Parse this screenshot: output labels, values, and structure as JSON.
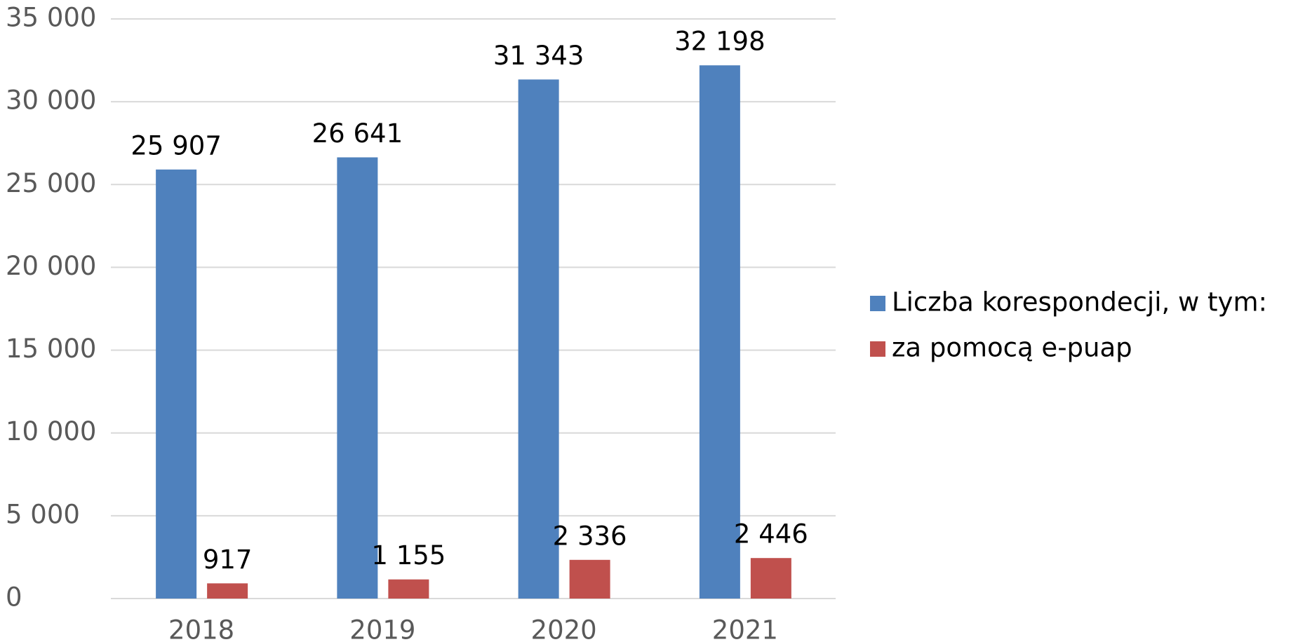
{
  "chart_data": {
    "type": "bar",
    "categories": [
      "2018",
      "2019",
      "2020",
      "2021"
    ],
    "series": [
      {
        "name": "Liczba korespondecji, w tym:",
        "color": "#4f81bd",
        "values": [
          25907,
          26641,
          31343,
          32198
        ],
        "value_labels": [
          "25 907",
          "26 641",
          "31 343",
          "32 198"
        ]
      },
      {
        "name": "za pomocą e-puap",
        "color": "#c0504d",
        "values": [
          917,
          1155,
          2336,
          2446
        ],
        "value_labels": [
          "917",
          "1 155",
          "2 336",
          "2 446"
        ]
      }
    ],
    "ylim": [
      0,
      35000
    ],
    "yticks": [
      0,
      {
        "value": 5000,
        "label": "5 000"
      },
      {
        "value": 10000,
        "label": "10 000"
      },
      {
        "value": 15000,
        "label": "15 000"
      },
      {
        "value": 20000,
        "label": "20 000"
      },
      {
        "value": 25000,
        "label": "25 000"
      },
      {
        "value": 30000,
        "label": "30 000"
      },
      {
        "value": 35000,
        "label": "35 000"
      }
    ],
    "grid": true,
    "legend": "right"
  }
}
